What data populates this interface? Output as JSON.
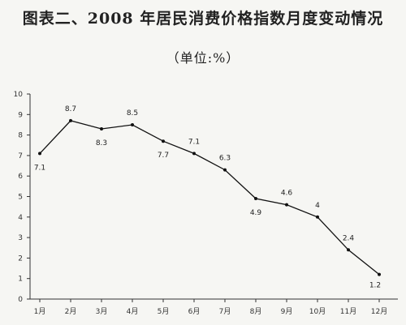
{
  "chart_data": {
    "type": "line",
    "title": "图表二、2008 年居民消费价格指数月度变动情况",
    "subtitle": "（单位:%）",
    "categories": [
      "1月",
      "2月",
      "3月",
      "4月",
      "5月",
      "6月",
      "7月",
      "8月",
      "9月",
      "10月",
      "11月",
      "12月"
    ],
    "series": [
      {
        "values": [
          7.1,
          8.7,
          8.3,
          8.5,
          7.7,
          7.1,
          6.3,
          4.9,
          4.6,
          4,
          2.4,
          1.2
        ]
      }
    ],
    "data_labels": [
      "7.1",
      "8.7",
      "8.3",
      "8.5",
      "7.7",
      "7.1",
      "6.3",
      "4.9",
      "4.6",
      "4",
      "2.4",
      "1.2"
    ],
    "yticks": [
      0,
      1,
      2,
      3,
      4,
      5,
      6,
      7,
      8,
      9,
      10
    ],
    "ylim": [
      0,
      10
    ],
    "grid": false,
    "line_color": "#111111"
  }
}
